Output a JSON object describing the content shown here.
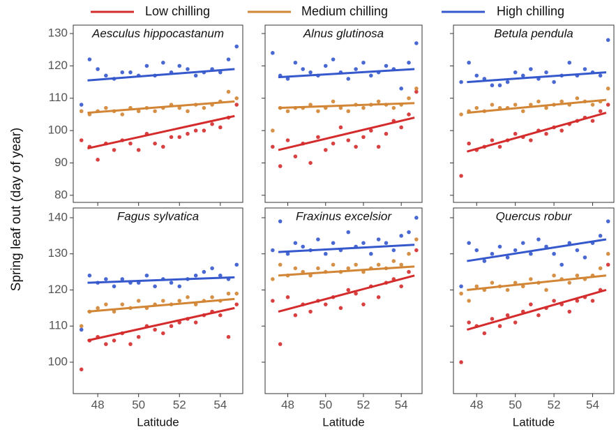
{
  "chart_data": [
    {
      "type": "scatter",
      "title": "Aesculus hippocastanum",
      "ylabel": "Spring leaf out (day of year)",
      "xlim": [
        46.8,
        55.1
      ],
      "ylim": [
        77.8,
        132.6
      ],
      "yticks": [
        80,
        90,
        100,
        110,
        120,
        130
      ],
      "x": [
        47.2,
        47.6,
        48.0,
        48.4,
        48.8,
        49.2,
        49.6,
        50.0,
        50.4,
        50.8,
        51.2,
        51.6,
        52.0,
        52.4,
        52.8,
        53.2,
        53.6,
        54.0,
        54.4,
        54.8
      ],
      "fit_x": [
        47.5,
        54.7
      ],
      "series": [
        {
          "name": "Low chilling",
          "color": "#d42c2c",
          "values": [
            97,
            95,
            91,
            96,
            94,
            97,
            96,
            94,
            99,
            96,
            95,
            98,
            98,
            99,
            100,
            100,
            102,
            101,
            104,
            108
          ],
          "fit": [
            94.5,
            104.5
          ]
        },
        {
          "name": "Medium chilling",
          "color": "#d18535",
          "values": [
            106,
            105,
            106,
            107,
            106,
            105,
            107,
            106,
            107,
            106,
            107,
            108,
            107,
            106,
            108,
            107,
            108,
            109,
            112,
            110
          ],
          "fit": [
            105.5,
            109
          ]
        },
        {
          "name": "High chilling",
          "color": "#3558cc",
          "values": [
            108,
            122,
            119,
            117,
            116,
            118,
            118,
            117,
            120,
            117,
            121,
            118,
            120,
            119,
            117,
            118,
            119,
            118,
            122,
            126
          ],
          "fit": [
            115.5,
            119
          ]
        }
      ]
    },
    {
      "type": "scatter",
      "title": "Alnus glutinosa",
      "xlim": [
        46.8,
        55.1
      ],
      "ylim": [
        77.8,
        132.6
      ],
      "x": [
        47.2,
        47.6,
        48.0,
        48.4,
        48.8,
        49.2,
        49.6,
        50.0,
        50.4,
        50.8,
        51.2,
        51.6,
        52.0,
        52.4,
        52.8,
        53.2,
        53.6,
        54.0,
        54.4,
        54.8
      ],
      "fit_x": [
        47.5,
        54.7
      ],
      "series": [
        {
          "name": "Low chilling",
          "color": "#d42c2c",
          "values": [
            95,
            89,
            97,
            92,
            96,
            90,
            98,
            94,
            96,
            101,
            97,
            95,
            98,
            100,
            95,
            99,
            103,
            101,
            105,
            112
          ],
          "fit": [
            94,
            104
          ]
        },
        {
          "name": "Medium chilling",
          "color": "#d18535",
          "values": [
            100,
            107,
            106,
            107,
            107,
            108,
            106,
            107,
            109,
            107,
            106,
            108,
            107,
            108,
            109,
            108,
            107,
            108,
            110,
            113
          ],
          "fit": [
            107,
            108.5
          ]
        },
        {
          "name": "High chilling",
          "color": "#3558cc",
          "values": [
            124,
            117,
            116,
            121,
            119,
            118,
            117,
            120,
            122,
            118,
            116,
            119,
            121,
            117,
            118,
            120,
            119,
            113,
            121,
            127
          ],
          "fit": [
            116.5,
            119
          ]
        }
      ]
    },
    {
      "type": "scatter",
      "title": "Betula pendula",
      "xlim": [
        46.8,
        55.1
      ],
      "ylim": [
        77.8,
        132.6
      ],
      "x": [
        47.2,
        47.6,
        48.0,
        48.4,
        48.8,
        49.2,
        49.6,
        50.0,
        50.4,
        50.8,
        51.2,
        51.6,
        52.0,
        52.4,
        52.8,
        53.2,
        53.6,
        54.0,
        54.4,
        54.8
      ],
      "fit_x": [
        47.5,
        54.7
      ],
      "series": [
        {
          "name": "Low chilling",
          "color": "#d42c2c",
          "values": [
            86,
            96,
            94,
            95,
            97,
            95,
            97,
            99,
            98,
            97,
            100,
            99,
            101,
            100,
            102,
            103,
            104,
            103,
            106,
            108
          ],
          "fit": [
            93.5,
            105.5
          ]
        },
        {
          "name": "Medium chilling",
          "color": "#d18535",
          "values": [
            105,
            106,
            107,
            106,
            108,
            107,
            107,
            108,
            106,
            108,
            109,
            107,
            108,
            109,
            108,
            110,
            109,
            108,
            109,
            113
          ],
          "fit": [
            105.5,
            109.5
          ]
        },
        {
          "name": "High chilling",
          "color": "#3558cc",
          "values": [
            115,
            121,
            117,
            116,
            114,
            114,
            115,
            118,
            117,
            119,
            116,
            118,
            115,
            117,
            121,
            117,
            119,
            118,
            117,
            128
          ],
          "fit": [
            115,
            118
          ]
        }
      ]
    },
    {
      "type": "scatter",
      "title": "Fagus sylvatica",
      "xlabel": "Latitude",
      "xlim": [
        46.8,
        55.1
      ],
      "ylim": [
        91.3,
        142.7
      ],
      "yticks": [
        100,
        110,
        120,
        130,
        140
      ],
      "xticks": [
        48,
        50,
        52,
        54
      ],
      "x": [
        47.2,
        47.6,
        48.0,
        48.4,
        48.8,
        49.2,
        49.6,
        50.0,
        50.4,
        50.8,
        51.2,
        51.6,
        52.0,
        52.4,
        52.8,
        53.2,
        53.6,
        54.0,
        54.4,
        54.8
      ],
      "fit_x": [
        47.5,
        54.7
      ],
      "series": [
        {
          "name": "Low chilling",
          "color": "#d42c2c",
          "values": [
            98,
            106,
            107,
            105,
            106,
            108,
            105,
            107,
            110,
            109,
            108,
            110,
            111,
            112,
            111,
            113,
            114,
            113,
            107,
            116
          ],
          "fit": [
            106,
            115
          ]
        },
        {
          "name": "Medium chilling",
          "color": "#d18535",
          "values": [
            110,
            114,
            115,
            116,
            114,
            116,
            115,
            117,
            115,
            116,
            117,
            116,
            117,
            118,
            116,
            117,
            118,
            117,
            119,
            119
          ],
          "fit": [
            114,
            117.5
          ]
        },
        {
          "name": "High chilling",
          "color": "#3558cc",
          "values": [
            109,
            124,
            122,
            123,
            121,
            123,
            122,
            122,
            124,
            121,
            123,
            122,
            121,
            123,
            124,
            125,
            126,
            124,
            123,
            127
          ],
          "fit": [
            122,
            123.5
          ]
        }
      ]
    },
    {
      "type": "scatter",
      "title": "Fraxinus excelsior",
      "xlabel": "Latitude",
      "xlim": [
        46.8,
        55.1
      ],
      "ylim": [
        91.3,
        142.7
      ],
      "xticks": [
        48,
        50,
        52,
        54
      ],
      "x": [
        47.2,
        47.6,
        48.0,
        48.4,
        48.8,
        49.2,
        49.6,
        50.0,
        50.4,
        50.8,
        51.2,
        51.6,
        52.0,
        52.4,
        52.8,
        53.2,
        53.6,
        54.0,
        54.4,
        54.8
      ],
      "fit_x": [
        47.5,
        54.7
      ],
      "series": [
        {
          "name": "Low chilling",
          "color": "#d42c2c",
          "values": [
            117,
            105,
            118,
            113,
            116,
            114,
            117,
            116,
            118,
            115,
            120,
            119,
            116,
            121,
            118,
            122,
            123,
            121,
            125,
            131
          ],
          "fit": [
            114,
            124
          ]
        },
        {
          "name": "Medium chilling",
          "color": "#d18535",
          "values": [
            123,
            127,
            124,
            126,
            125,
            124,
            126,
            125,
            127,
            125,
            126,
            127,
            125,
            126,
            127,
            126,
            128,
            127,
            130,
            134
          ],
          "fit": [
            124,
            126.5
          ]
        },
        {
          "name": "High chilling",
          "color": "#3558cc",
          "values": [
            131,
            139,
            130,
            133,
            132,
            131,
            134,
            130,
            133,
            131,
            136,
            132,
            133,
            130,
            134,
            133,
            131,
            135,
            136,
            140
          ],
          "fit": [
            130.5,
            132.5
          ]
        }
      ]
    },
    {
      "type": "scatter",
      "title": "Quercus robur",
      "xlabel": "Latitude",
      "xlim": [
        46.8,
        55.1
      ],
      "ylim": [
        91.3,
        142.7
      ],
      "xticks": [
        48,
        50,
        52,
        54
      ],
      "x": [
        47.2,
        47.6,
        48.0,
        48.4,
        48.8,
        49.2,
        49.6,
        50.0,
        50.4,
        50.8,
        51.2,
        51.6,
        52.0,
        52.4,
        52.8,
        53.2,
        53.6,
        54.0,
        54.4,
        54.8
      ],
      "fit_x": [
        47.5,
        54.7
      ],
      "series": [
        {
          "name": "Low chilling",
          "color": "#d42c2c",
          "values": [
            100,
            111,
            110,
            108,
            112,
            110,
            113,
            111,
            114,
            116,
            113,
            115,
            117,
            116,
            114,
            117,
            118,
            117,
            120,
            127
          ],
          "fit": [
            109,
            120
          ]
        },
        {
          "name": "Medium chilling",
          "color": "#d18535",
          "values": [
            119,
            117,
            121,
            120,
            122,
            121,
            120,
            122,
            121,
            123,
            122,
            120,
            124,
            123,
            122,
            124,
            123,
            124,
            126,
            130
          ],
          "fit": [
            120,
            124
          ]
        },
        {
          "name": "High chilling",
          "color": "#3558cc",
          "values": [
            121,
            133,
            131,
            128,
            130,
            132,
            129,
            131,
            133,
            130,
            134,
            132,
            130,
            127,
            133,
            131,
            129,
            133,
            135,
            139
          ],
          "fit": [
            128,
            134
          ]
        }
      ]
    }
  ]
}
